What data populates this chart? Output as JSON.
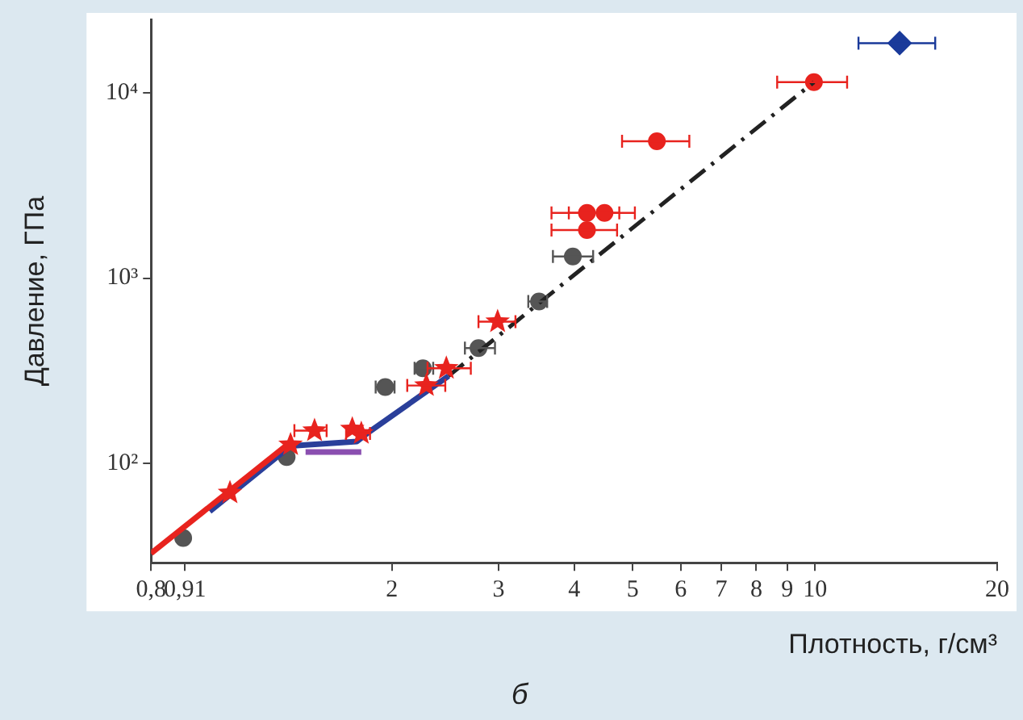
{
  "chart_data": {
    "type": "scatter",
    "xlabel": "Плотность, г/см³",
    "ylabel": "Давление, ГПа",
    "log": "xy",
    "grid": false,
    "legend": false,
    "xlim": [
      0.8,
      20
    ],
    "xticks": [
      {
        "value": 0.8,
        "label": "0,8"
      },
      {
        "value": 0.91,
        "label": "0,91"
      },
      2,
      3,
      4,
      5,
      6,
      7,
      8,
      9,
      10,
      20
    ],
    "ylim": [
      29,
      25000
    ],
    "yticks": [
      {
        "value": 100,
        "label": "10²"
      },
      {
        "value": 1000,
        "label": "10³"
      },
      {
        "value": 10000,
        "label": "10⁴"
      }
    ],
    "annotations": [
      "б"
    ],
    "series": [
      {
        "type": "line",
        "color": "#e8231e",
        "marker": "none",
        "line_style": "solid",
        "x": [
          0.8,
          1.36
        ],
        "values": [
          32.6,
          130
        ]
      },
      {
        "type": "line",
        "color": "#2a3f9a",
        "marker": "none",
        "line_style": "solid",
        "x": [
          1.0,
          1.36,
          1.75,
          1.82,
          2.48
        ],
        "values": [
          55,
          124,
          131,
          145,
          296
        ]
      },
      {
        "type": "line",
        "color": "#8a4fb0",
        "marker": "none",
        "line_style": "solid",
        "x": [
          1.44,
          1.78
        ],
        "values": [
          115,
          115
        ]
      },
      {
        "type": "line",
        "color": "#222222",
        "marker": "none",
        "line_style": "dashed",
        "x": [
          2.48,
          9.96
        ],
        "values": [
          296,
          11450
        ]
      },
      {
        "color": "#555555",
        "marker": "circle",
        "x": [
          0.904,
          1.34,
          1.95,
          2.25,
          2.78,
          3.5,
          3.98
        ],
        "values": [
          39.5,
          108,
          258,
          326,
          419,
          748,
          1310
        ],
        "xerrors": [
          null,
          null,
          [
            1.88,
            2.02
          ],
          [
            2.18,
            2.34
          ],
          [
            2.64,
            2.96
          ],
          [
            3.36,
            3.61
          ],
          [
            3.69,
            4.3
          ]
        ]
      },
      {
        "color": "#e8231e",
        "marker": "star",
        "x": [
          1.08,
          1.36,
          1.49,
          1.72,
          1.78,
          2.28,
          2.46,
          2.99
        ],
        "values": [
          69.2,
          126,
          150,
          153,
          145,
          263,
          326,
          582
        ],
        "xerrors": [
          null,
          null,
          [
            1.38,
            1.56
          ],
          null,
          [
            1.68,
            1.84
          ],
          [
            2.12,
            2.45
          ],
          [
            2.29,
            2.7
          ],
          [
            2.78,
            3.2
          ]
        ]
      },
      {
        "color": "#e8231e",
        "marker": "circle",
        "x": [
          4.2,
          4.49,
          4.2,
          5.48,
          9.96
        ],
        "values": [
          2250,
          2250,
          1820,
          5490,
          11450
        ],
        "xerrors": [
          [
            3.67,
            4.75
          ],
          [
            3.92,
            5.04
          ],
          [
            3.67,
            4.71
          ],
          [
            4.8,
            6.2
          ],
          [
            8.66,
            11.3
          ]
        ]
      },
      {
        "color": "#1a3a9a",
        "marker": "diamond",
        "x": [
          13.8
        ],
        "values": [
          18600
        ],
        "xerrors": [
          [
            11.8,
            15.8
          ]
        ]
      }
    ]
  }
}
